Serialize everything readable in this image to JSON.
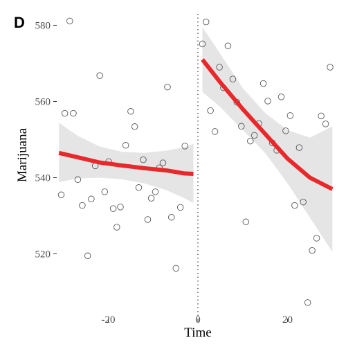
{
  "panel_label": "D",
  "chart_data": {
    "type": "scatter",
    "xlabel": "Time",
    "ylabel": "Marijuana",
    "xlim": [
      -31.5,
      31.5
    ],
    "ylim": [
      503,
      583
    ],
    "xticks": [
      -20,
      0,
      20
    ],
    "xtick_labels": [
      "-20",
      "0",
      "20"
    ],
    "yticks": [
      520,
      540,
      560,
      580
    ],
    "ytick_labels": [
      "520",
      "540",
      "560",
      "580"
    ],
    "grid": false,
    "legend": "none",
    "cutoff_x": 0,
    "cutoff_style": "dotted vertical line",
    "points": [
      {
        "x": -30.5,
        "y": 535.5
      },
      {
        "x": -29.7,
        "y": 556.9
      },
      {
        "x": -28.6,
        "y": 581.1
      },
      {
        "x": -27.8,
        "y": 556.9
      },
      {
        "x": -26.8,
        "y": 539.5
      },
      {
        "x": -25.8,
        "y": 532.7
      },
      {
        "x": -24.6,
        "y": 519.5
      },
      {
        "x": -23.8,
        "y": 534.4
      },
      {
        "x": -22.9,
        "y": 543.1
      },
      {
        "x": -21.9,
        "y": 566.8
      },
      {
        "x": -20.8,
        "y": 536.3
      },
      {
        "x": -19.9,
        "y": 544.2
      },
      {
        "x": -18.9,
        "y": 531.9
      },
      {
        "x": -18.1,
        "y": 527.0
      },
      {
        "x": -17.3,
        "y": 532.3
      },
      {
        "x": -16.1,
        "y": 548.5
      },
      {
        "x": -15.0,
        "y": 557.4
      },
      {
        "x": -14.1,
        "y": 553.4
      },
      {
        "x": -13.2,
        "y": 537.4
      },
      {
        "x": -12.2,
        "y": 544.7
      },
      {
        "x": -11.2,
        "y": 529.0
      },
      {
        "x": -10.4,
        "y": 534.6
      },
      {
        "x": -9.5,
        "y": 536.3
      },
      {
        "x": -8.6,
        "y": 542.6
      },
      {
        "x": -7.8,
        "y": 543.9
      },
      {
        "x": -6.8,
        "y": 563.8
      },
      {
        "x": -5.9,
        "y": 529.6
      },
      {
        "x": -4.9,
        "y": 516.2
      },
      {
        "x": -3.9,
        "y": 532.2
      },
      {
        "x": -2.9,
        "y": 548.3
      },
      {
        "x": 1.0,
        "y": 575.1
      },
      {
        "x": 1.8,
        "y": 580.9
      },
      {
        "x": 2.8,
        "y": 557.6
      },
      {
        "x": 3.8,
        "y": 552.1
      },
      {
        "x": 4.8,
        "y": 569.0
      },
      {
        "x": 5.7,
        "y": 563.6
      },
      {
        "x": 6.7,
        "y": 574.6
      },
      {
        "x": 7.8,
        "y": 565.9
      },
      {
        "x": 8.7,
        "y": 559.8
      },
      {
        "x": 9.7,
        "y": 553.5
      },
      {
        "x": 10.7,
        "y": 528.4
      },
      {
        "x": 11.7,
        "y": 549.6
      },
      {
        "x": 12.6,
        "y": 551.1
      },
      {
        "x": 13.6,
        "y": 554.2
      },
      {
        "x": 14.6,
        "y": 564.7
      },
      {
        "x": 15.6,
        "y": 560.1
      },
      {
        "x": 16.6,
        "y": 549.1
      },
      {
        "x": 17.6,
        "y": 547.2
      },
      {
        "x": 18.6,
        "y": 561.2
      },
      {
        "x": 19.6,
        "y": 552.3
      },
      {
        "x": 20.6,
        "y": 556.3
      },
      {
        "x": 21.6,
        "y": 532.7
      },
      {
        "x": 22.6,
        "y": 547.9
      },
      {
        "x": 23.5,
        "y": 533.6
      },
      {
        "x": 24.5,
        "y": 507.2
      },
      {
        "x": 25.5,
        "y": 520.9
      },
      {
        "x": 26.5,
        "y": 524.1
      },
      {
        "x": 27.5,
        "y": 556.2
      },
      {
        "x": 28.5,
        "y": 554.1
      },
      {
        "x": 29.5,
        "y": 569.0
      }
    ],
    "fits": [
      {
        "segment": "before",
        "curve": [
          [
            -31,
            546.5
          ],
          [
            -27,
            545.4
          ],
          [
            -22,
            544.0
          ],
          [
            -17,
            543.2
          ],
          [
            -12,
            542.5
          ],
          [
            -7,
            541.9
          ],
          [
            -3,
            541.1
          ],
          [
            -1,
            541.0
          ]
        ],
        "band_lower": [
          [
            -31,
            538.8
          ],
          [
            -27,
            539.8
          ],
          [
            -22,
            540.0
          ],
          [
            -17,
            539.6
          ],
          [
            -12,
            538.5
          ],
          [
            -7,
            536.7
          ],
          [
            -3,
            534.6
          ],
          [
            -1,
            533.3
          ]
        ],
        "band_upper": [
          [
            -31,
            554.4
          ],
          [
            -27,
            551.1
          ],
          [
            -22,
            548.2
          ],
          [
            -17,
            546.8
          ],
          [
            -12,
            546.5
          ],
          [
            -7,
            547.1
          ],
          [
            -3,
            548.0
          ],
          [
            -1,
            548.9
          ]
        ]
      },
      {
        "segment": "after",
        "curve": [
          [
            1,
            571.0
          ],
          [
            5,
            565.0
          ],
          [
            10,
            558.0
          ],
          [
            15,
            551.5
          ],
          [
            20,
            545.0
          ],
          [
            25,
            540.0
          ],
          [
            30,
            537.0
          ]
        ],
        "band_lower": [
          [
            1,
            562.5
          ],
          [
            5,
            558.5
          ],
          [
            10,
            552.5
          ],
          [
            15,
            546.5
          ],
          [
            20,
            538.5
          ],
          [
            25,
            529.5
          ],
          [
            30,
            520.5
          ]
        ],
        "band_upper": [
          [
            1,
            579.5
          ],
          [
            5,
            572.5
          ],
          [
            10,
            563.5
          ],
          [
            15,
            557.0
          ],
          [
            20,
            552.5
          ],
          [
            25,
            550.5
          ],
          [
            30,
            553.5
          ]
        ]
      }
    ]
  }
}
